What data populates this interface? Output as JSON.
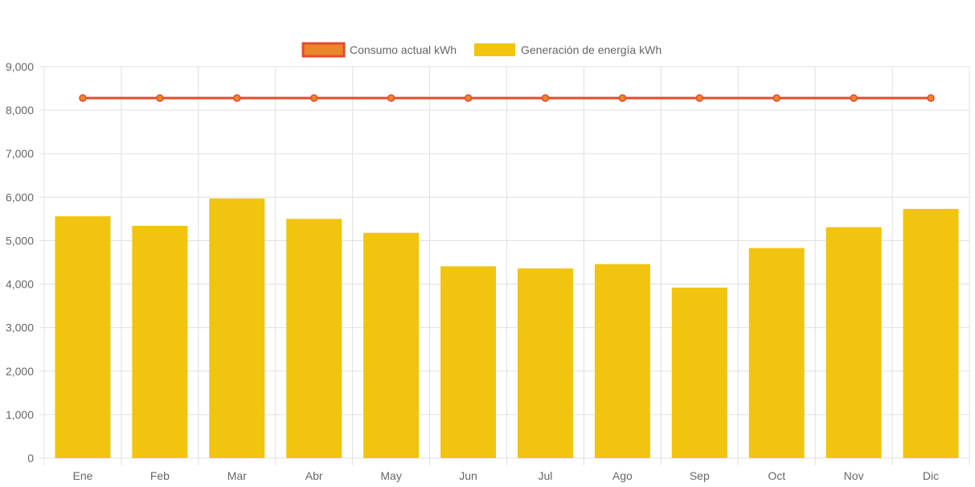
{
  "chart_data": {
    "type": "bar",
    "categories": [
      "Ene",
      "Feb",
      "Mar",
      "Abr",
      "May",
      "Jun",
      "Jul",
      "Ago",
      "Sep",
      "Oct",
      "Nov",
      "Dic"
    ],
    "series": [
      {
        "name": "Consumo actual kWh",
        "type": "line",
        "values": [
          8280,
          8280,
          8280,
          8280,
          8280,
          8280,
          8280,
          8280,
          8280,
          8280,
          8280,
          8280
        ]
      },
      {
        "name": "Generación de energía kWh",
        "type": "bar",
        "values": [
          5560,
          5340,
          5970,
          5500,
          5180,
          4410,
          4360,
          4460,
          3920,
          4830,
          5310,
          5730
        ]
      }
    ],
    "title": "",
    "xlabel": "",
    "ylabel": "",
    "ylim": [
      0,
      9000
    ],
    "yticks": [
      "0",
      "1,000",
      "2,000",
      "3,000",
      "4,000",
      "5,000",
      "6,000",
      "7,000",
      "8,000",
      "9,000"
    ],
    "grid": true,
    "legend_position": "top"
  },
  "colors": {
    "line_stroke": "#e64a2e",
    "line_fill": "#e8862a",
    "bar_fill": "#f1c40f",
    "grid": "#e0e0e0",
    "text": "#666666"
  }
}
